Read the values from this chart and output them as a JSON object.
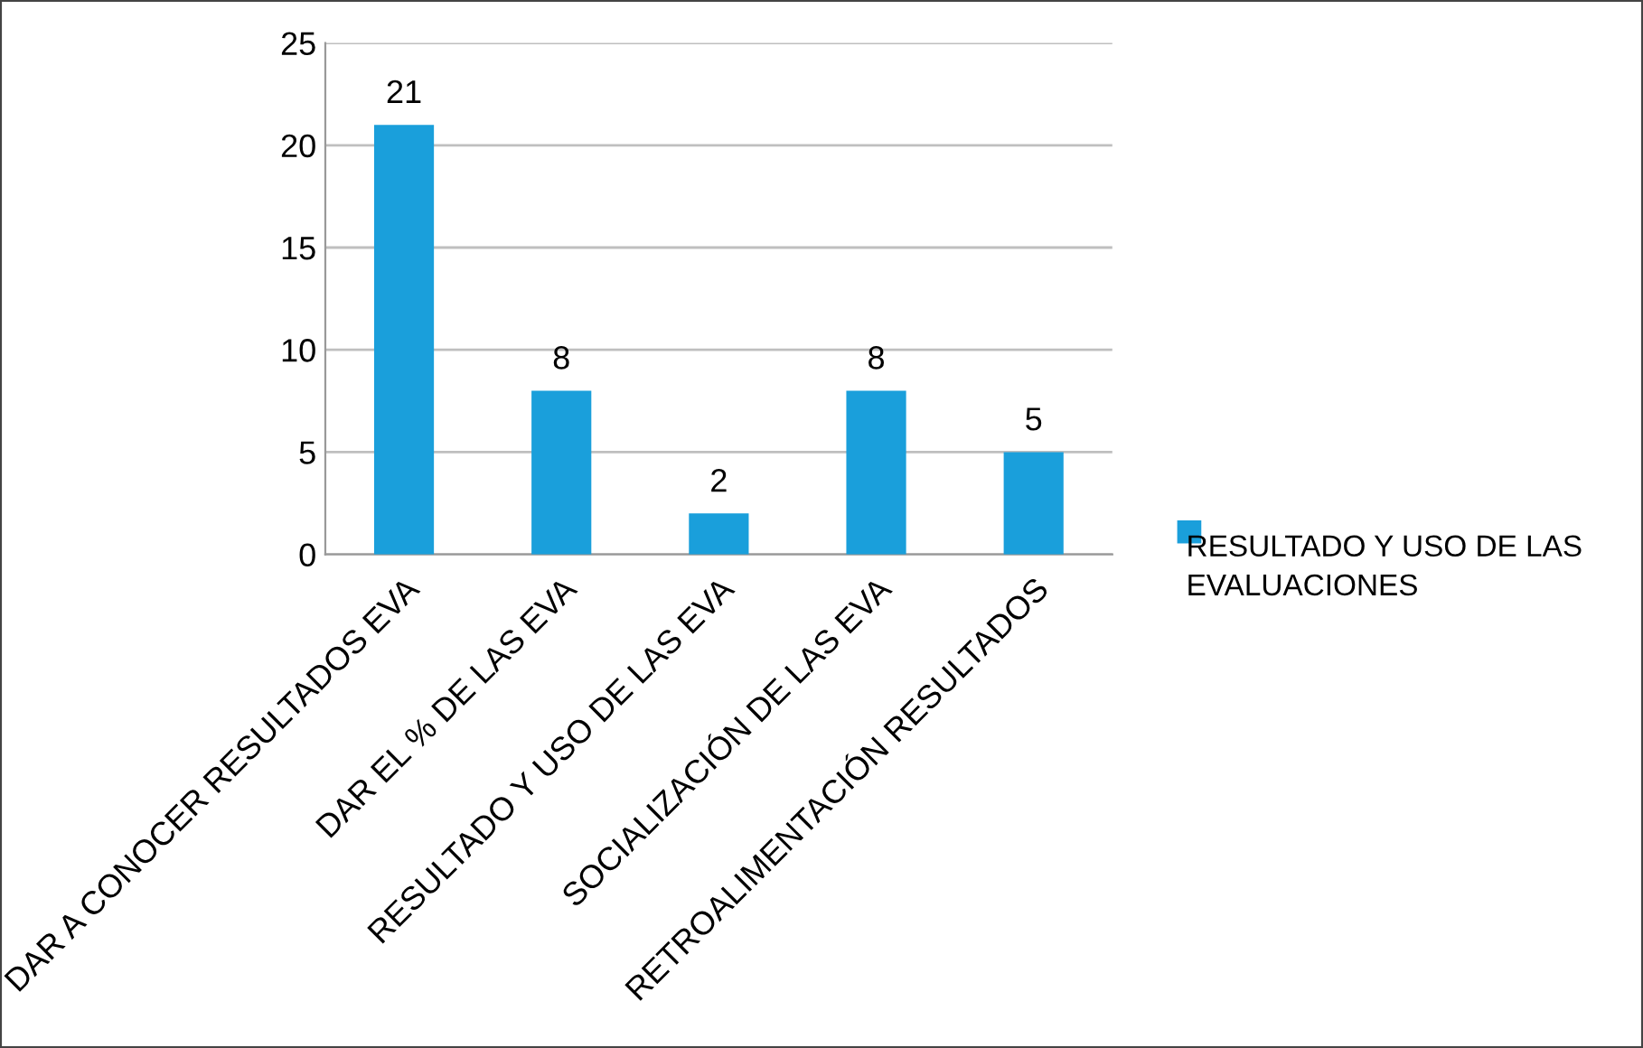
{
  "chart_data": {
    "type": "bar",
    "categories": [
      "DAR A CONOCER RESULTADOS EVA",
      "DAR EL % DE LAS EVA",
      "RESULTADO Y USO DE LAS EVA",
      "SOCIALIZACIÓN DE LAS EVA",
      "RETROALIMENTACIÓN RESULTADOS"
    ],
    "series": [
      {
        "name": "RESULTADO Y USO DE LAS EVALUACIONES",
        "color": "#1a9fdb",
        "values": [
          21,
          8,
          2,
          8,
          5
        ]
      }
    ],
    "ylim": [
      0,
      25
    ],
    "yticks": [
      0,
      5,
      10,
      15,
      20,
      25
    ],
    "grid": "y",
    "legend": "right",
    "data_labels": true
  }
}
